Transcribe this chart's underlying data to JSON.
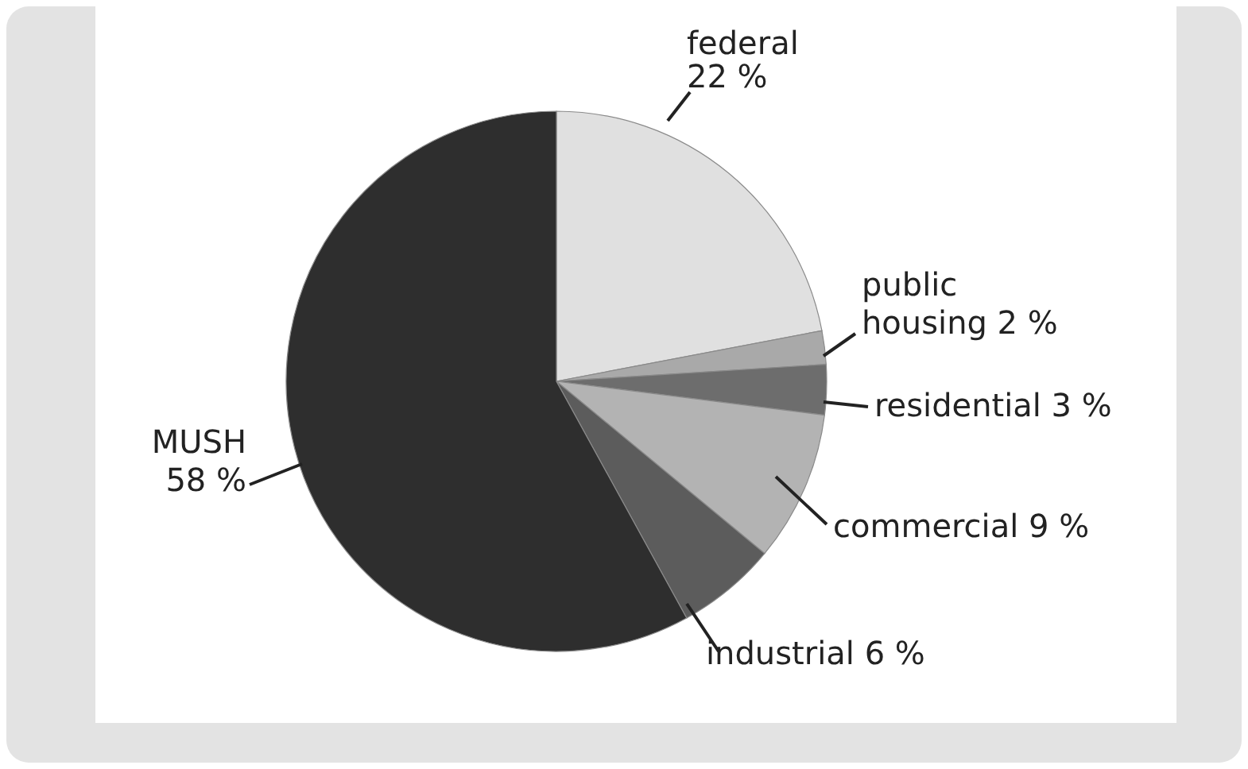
{
  "chart_data": {
    "type": "pie",
    "categories": [
      "federal",
      "public housing",
      "residential",
      "commercial",
      "industrial",
      "MUSH"
    ],
    "values": [
      22,
      2,
      3,
      9,
      6,
      58
    ],
    "value_labels": [
      "22 %",
      "2 %",
      "3 %",
      "9 %",
      "6 %",
      "58 %"
    ],
    "colors": [
      "#e0e0e0",
      "#a9a9a9",
      "#6d6d6d",
      "#b3b3b3",
      "#5c5c5c",
      "#2e2e2e"
    ]
  }
}
